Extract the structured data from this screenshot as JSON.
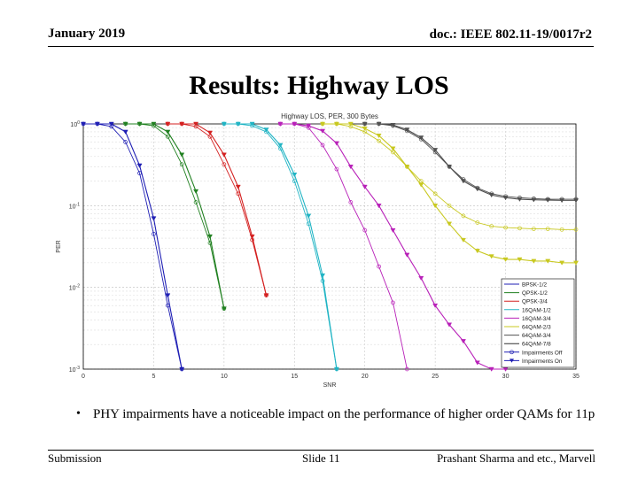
{
  "header": {
    "date": "January 2019",
    "doc": "doc.: IEEE 802.11-19/0017r2"
  },
  "slide_title": "Results: Highway LOS",
  "bullet_text": "PHY impairments have a noticeable impact on the performance of higher order QAMs for 11p",
  "footer": {
    "left": "Submission",
    "center": "Slide 11",
    "right": "Prashant Sharma and etc., Marvell"
  },
  "chart_data": {
    "type": "line",
    "title": "Highway LOS, PER, 300 Bytes",
    "xlabel": "SNR",
    "ylabel": "PER",
    "xlim": [
      0,
      35
    ],
    "ylim": [
      0.001,
      1
    ],
    "y_scale": "log",
    "x_ticks": [
      0,
      5,
      10,
      15,
      20,
      25,
      30,
      35
    ],
    "y_ticks": [
      {
        "value": 1,
        "label": "10^0"
      },
      {
        "value": 0.1,
        "label": "10^-1"
      },
      {
        "value": 0.01,
        "label": "10^-2"
      },
      {
        "value": 0.001,
        "label": "10^-3"
      }
    ],
    "grid": true,
    "legend_position": "bottom-right",
    "legend": [
      "BPSK-1/2",
      "QPSK-1/2",
      "QPSK-3/4",
      "16QAM-1/2",
      "16QAM-3/4",
      "64QAM-2/3",
      "64QAM-3/4",
      "64QAM-7/8",
      "Impairments Off",
      "Impairments On"
    ],
    "series": [
      {
        "name": "BPSK-1/2",
        "group": "off",
        "color": "#1f1fb4",
        "x": [
          0,
          1,
          2,
          3,
          4,
          5,
          6,
          7
        ],
        "y": [
          1,
          1,
          0.93,
          0.6,
          0.25,
          0.045,
          0.006,
          0.001
        ]
      },
      {
        "name": "BPSK-1/2",
        "group": "on",
        "color": "#1f1fb4",
        "x": [
          0,
          1,
          2,
          3,
          4,
          5,
          6,
          7
        ],
        "y": [
          1,
          1,
          1,
          0.8,
          0.31,
          0.07,
          0.008,
          0.001
        ]
      },
      {
        "name": "QPSK-1/2",
        "group": "off",
        "color": "#208020",
        "x": [
          3,
          4,
          5,
          6,
          7,
          8,
          9,
          10
        ],
        "y": [
          1,
          1,
          0.95,
          0.7,
          0.32,
          0.11,
          0.035,
          0.0055
        ]
      },
      {
        "name": "QPSK-1/2",
        "group": "on",
        "color": "#208020",
        "x": [
          3,
          4,
          5,
          6,
          7,
          8,
          9,
          10
        ],
        "y": [
          1,
          1,
          1,
          0.8,
          0.42,
          0.15,
          0.042,
          0.0055
        ]
      },
      {
        "name": "QPSK-3/4",
        "group": "off",
        "color": "#d42020",
        "x": [
          6,
          7,
          8,
          9,
          10,
          11,
          12,
          13
        ],
        "y": [
          1,
          1,
          0.93,
          0.7,
          0.32,
          0.14,
          0.038,
          0.008
        ]
      },
      {
        "name": "QPSK-3/4",
        "group": "on",
        "color": "#d42020",
        "x": [
          6,
          7,
          8,
          9,
          10,
          11,
          12,
          13
        ],
        "y": [
          1,
          1,
          1,
          0.78,
          0.42,
          0.17,
          0.042,
          0.008
        ]
      },
      {
        "name": "16QAM-1/2",
        "group": "off",
        "color": "#20b4c4",
        "x": [
          10,
          11,
          12,
          13,
          14,
          15,
          16,
          17,
          18
        ],
        "y": [
          1,
          1,
          0.95,
          0.8,
          0.5,
          0.2,
          0.06,
          0.012,
          0.001
        ]
      },
      {
        "name": "16QAM-1/2",
        "group": "on",
        "color": "#20b4c4",
        "x": [
          10,
          11,
          12,
          13,
          14,
          15,
          16,
          17,
          18
        ],
        "y": [
          1,
          1,
          1,
          0.85,
          0.55,
          0.24,
          0.075,
          0.014,
          0.001
        ]
      },
      {
        "name": "16QAM-3/4",
        "group": "off",
        "color": "#b820b8",
        "x": [
          14,
          15,
          16,
          17,
          18,
          19,
          20,
          21,
          22,
          23
        ],
        "y": [
          1,
          1,
          0.9,
          0.55,
          0.28,
          0.11,
          0.05,
          0.018,
          0.0065,
          0.001
        ]
      },
      {
        "name": "16QAM-3/4",
        "group": "on",
        "color": "#b820b8",
        "x": [
          14,
          15,
          16,
          17,
          18,
          19,
          20,
          21,
          22,
          23,
          24,
          25,
          26,
          27,
          28,
          29,
          30
        ],
        "y": [
          1,
          1,
          0.95,
          0.82,
          0.58,
          0.3,
          0.17,
          0.1,
          0.05,
          0.025,
          0.013,
          0.006,
          0.0035,
          0.0022,
          0.0012,
          0.001,
          0.001
        ]
      },
      {
        "name": "64QAM-2/3",
        "group": "off",
        "color": "#c8c820",
        "x": [
          17,
          18,
          19,
          20,
          21,
          22,
          23,
          24,
          25,
          26,
          27,
          28,
          29,
          30,
          31,
          32,
          33,
          34,
          35
        ],
        "y": [
          1,
          1,
          0.93,
          0.8,
          0.62,
          0.45,
          0.3,
          0.2,
          0.14,
          0.1,
          0.075,
          0.062,
          0.056,
          0.054,
          0.053,
          0.052,
          0.052,
          0.051,
          0.051
        ]
      },
      {
        "name": "64QAM-2/3",
        "group": "on",
        "color": "#c8c820",
        "x": [
          17,
          18,
          19,
          20,
          21,
          22,
          23,
          24,
          25,
          26,
          27,
          28,
          29,
          30,
          31,
          32,
          33,
          34,
          35
        ],
        "y": [
          1,
          1,
          1,
          0.88,
          0.72,
          0.5,
          0.3,
          0.18,
          0.1,
          0.06,
          0.038,
          0.028,
          0.024,
          0.022,
          0.022,
          0.021,
          0.021,
          0.02,
          0.02
        ]
      },
      {
        "name": "64QAM-3/4",
        "group": "off",
        "color": "#505050",
        "x": [
          20,
          21,
          22,
          23,
          24,
          25,
          26,
          27,
          28,
          29,
          30,
          31,
          32,
          33,
          34,
          35
        ],
        "y": [
          1,
          1,
          0.95,
          0.82,
          0.65,
          0.45,
          0.3,
          0.21,
          0.165,
          0.14,
          0.13,
          0.125,
          0.122,
          0.12,
          0.12,
          0.12
        ]
      },
      {
        "name": "64QAM-3/4",
        "group": "on",
        "color": "#505050",
        "x": [
          20,
          21,
          22,
          23,
          24,
          25,
          26,
          27,
          28,
          29,
          30,
          31,
          32,
          33,
          34,
          35
        ],
        "y": [
          1,
          1,
          0.97,
          0.85,
          0.68,
          0.48,
          0.3,
          0.2,
          0.16,
          0.135,
          0.125,
          0.12,
          0.118,
          0.117,
          0.116,
          0.116
        ]
      }
    ]
  }
}
